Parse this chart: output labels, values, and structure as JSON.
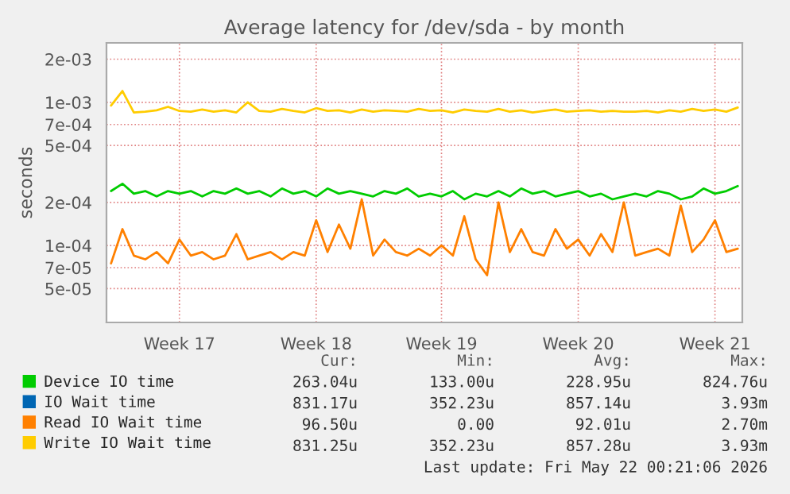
{
  "chart_data": {
    "type": "line",
    "title": "Average latency for /dev/sda - by month",
    "ylabel": "seconds",
    "categories": [
      null,
      null,
      null,
      null,
      null,
      null,
      "Week 17",
      null,
      null,
      null,
      null,
      null,
      null,
      null,
      null,
      null,
      null,
      null,
      "Week 18",
      null,
      null,
      null,
      null,
      null,
      null,
      null,
      null,
      null,
      null,
      "Week 19",
      null,
      null,
      null,
      null,
      null,
      null,
      null,
      null,
      null,
      null,
      null,
      "Week 20",
      null,
      null,
      null,
      null,
      null,
      null,
      null,
      null,
      null,
      null,
      null,
      "Week 21",
      null,
      null
    ],
    "log": true,
    "ylim": [
      2.9e-05,
      0.0026
    ],
    "yticks": [
      {
        "value": 5e-05,
        "label": "5e-05"
      },
      {
        "value": 7e-05,
        "label": "7e-05"
      },
      {
        "value": 0.0001,
        "label": "1e-04"
      },
      {
        "value": 0.0002,
        "label": "2e-04"
      },
      {
        "value": 0.0005,
        "label": "5e-04"
      },
      {
        "value": 0.0007,
        "label": "7e-04"
      },
      {
        "value": 0.001,
        "label": "1e-03"
      },
      {
        "value": 0.002,
        "label": "2e-03"
      }
    ],
    "grid": true,
    "legend": "bottom",
    "series": [
      {
        "name": "Device IO time",
        "color": "#00cc00",
        "values": [
          0.00024,
          0.00027,
          0.00023,
          0.00024,
          0.00022,
          0.00024,
          0.00023,
          0.00024,
          0.00022,
          0.00024,
          0.00023,
          0.00025,
          0.00023,
          0.00024,
          0.00022,
          0.00025,
          0.00023,
          0.00024,
          0.00022,
          0.00025,
          0.00023,
          0.00024,
          0.00023,
          0.00022,
          0.00024,
          0.00023,
          0.00025,
          0.00022,
          0.00023,
          0.00022,
          0.00024,
          0.00021,
          0.00023,
          0.00022,
          0.00024,
          0.00022,
          0.00025,
          0.00023,
          0.00024,
          0.00022,
          0.00023,
          0.00024,
          0.00022,
          0.00023,
          0.00021,
          0.00022,
          0.00023,
          0.00022,
          0.00024,
          0.00023,
          0.00021,
          0.00022,
          0.00025,
          0.00023,
          0.00024,
          0.00026
        ]
      },
      {
        "name": "IO Wait time",
        "color": "#0066b3",
        "values": [
          null,
          null,
          null,
          null,
          null,
          null,
          null,
          null,
          null,
          null,
          null,
          null,
          null,
          null,
          null,
          null,
          null,
          null,
          null,
          null,
          null,
          null,
          null,
          null,
          null,
          null,
          null,
          null,
          null,
          null,
          null,
          null,
          null,
          null,
          null,
          null,
          null,
          null,
          null,
          null,
          null,
          null,
          null,
          null,
          null,
          null,
          null,
          null,
          null,
          null,
          null,
          null,
          null,
          null,
          null,
          null
        ]
      },
      {
        "name": "Read IO Wait time",
        "color": "#ff8000",
        "values": [
          7.5e-05,
          0.00013,
          8.5e-05,
          8e-05,
          9e-05,
          7.5e-05,
          0.00011,
          8.5e-05,
          9e-05,
          8e-05,
          8.5e-05,
          0.00012,
          8e-05,
          8.5e-05,
          9e-05,
          8e-05,
          9e-05,
          8.5e-05,
          0.00015,
          9e-05,
          0.00014,
          9.5e-05,
          0.00021,
          8.5e-05,
          0.00011,
          9e-05,
          8.5e-05,
          9.5e-05,
          8.5e-05,
          0.0001,
          8.5e-05,
          0.00016,
          8e-05,
          6.2e-05,
          0.0002,
          9e-05,
          0.00013,
          9e-05,
          8.5e-05,
          0.00013,
          9.5e-05,
          0.00011,
          8.5e-05,
          0.00012,
          9e-05,
          0.0002,
          8.5e-05,
          9e-05,
          9.5e-05,
          8.5e-05,
          0.00019,
          9e-05,
          0.00011,
          0.00015,
          9e-05,
          9.5e-05
        ]
      },
      {
        "name": "Write IO Wait time",
        "color": "#ffcc00",
        "values": [
          0.00095,
          0.0012,
          0.00085,
          0.00086,
          0.00088,
          0.00093,
          0.00087,
          0.00086,
          0.00089,
          0.00086,
          0.00088,
          0.00085,
          0.001,
          0.00087,
          0.00086,
          0.0009,
          0.00087,
          0.00085,
          0.00091,
          0.00087,
          0.00088,
          0.00085,
          0.00089,
          0.00086,
          0.00088,
          0.00087,
          0.00086,
          0.0009,
          0.00087,
          0.00088,
          0.00085,
          0.00089,
          0.00087,
          0.00086,
          0.0009,
          0.00086,
          0.00088,
          0.00085,
          0.00087,
          0.00089,
          0.00086,
          0.00087,
          0.00088,
          0.00086,
          0.00087,
          0.00086,
          0.00086,
          0.00087,
          0.00085,
          0.00088,
          0.00086,
          0.0009,
          0.00087,
          0.00089,
          0.00086,
          0.00092
        ]
      }
    ],
    "annotations": [
      "Cur:",
      "Min:",
      "Avg:",
      "Max:",
      "263.04u",
      "133.00u",
      "228.95u",
      "824.76u",
      "831.17u",
      "352.23u",
      "857.14u",
      "3.93m",
      "96.50u",
      "0.00",
      "92.01u",
      "2.70m",
      "831.25u",
      "352.23u",
      "857.28u",
      "3.93m",
      "Last update: Fri May 22 00:21:06 2026"
    ]
  }
}
